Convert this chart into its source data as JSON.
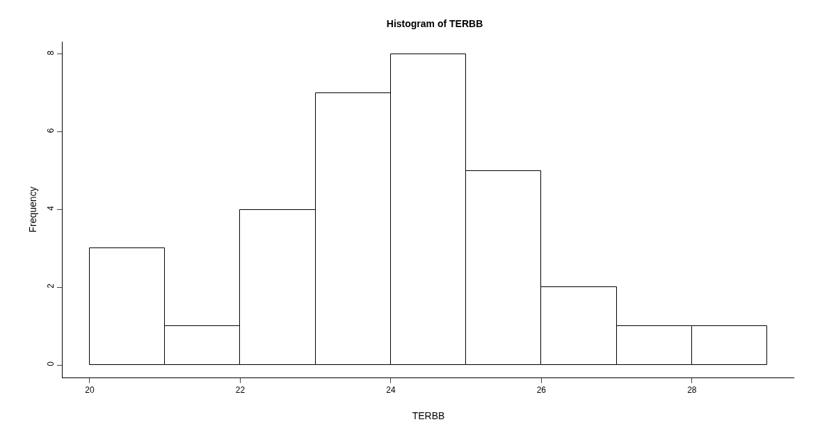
{
  "chart_data": {
    "type": "histogram",
    "title": "Histogram of TERBB",
    "xlabel": "TERBB",
    "ylabel": "Frequency",
    "bins": [
      20,
      21,
      22,
      23,
      24,
      25,
      26,
      27,
      28,
      29
    ],
    "values": [
      3,
      1,
      4,
      7,
      8,
      5,
      2,
      1,
      1
    ],
    "color": "#ffffff",
    "xlim": [
      19.64,
      29.36
    ],
    "xticks": [
      20,
      22,
      24,
      26,
      28
    ],
    "ylim": [
      -0.32,
      8.32
    ],
    "yticks": [
      0,
      2,
      4,
      6,
      8
    ]
  }
}
